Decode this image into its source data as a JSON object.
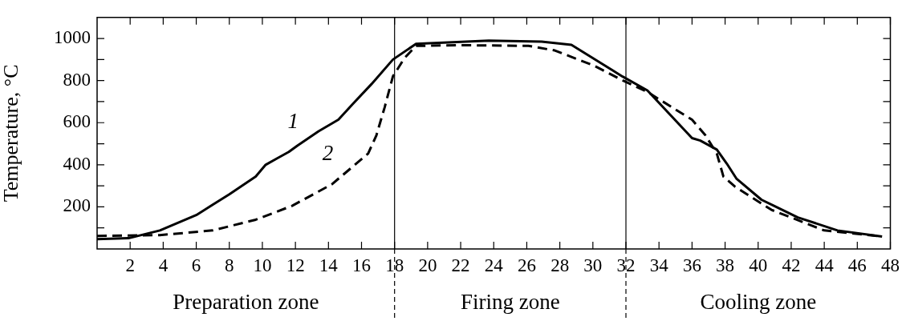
{
  "chart_data": {
    "type": "line",
    "ylabel": "Temperature, °C",
    "xlim": [
      0,
      48
    ],
    "xticks": [
      2,
      4,
      6,
      8,
      10,
      12,
      14,
      16,
      18,
      20,
      22,
      24,
      26,
      28,
      30,
      32,
      34,
      36,
      38,
      40,
      42,
      44,
      46,
      48
    ],
    "ylim": [
      0,
      1100
    ],
    "yticks": [
      {
        "value": 100,
        "label": null
      },
      200,
      {
        "value": 300,
        "label": null
      },
      400,
      {
        "value": 500,
        "label": null
      },
      600,
      {
        "value": 700,
        "label": null
      },
      800,
      {
        "value": 900,
        "label": null
      },
      1000
    ],
    "grid": false,
    "legend": false,
    "marker": "none",
    "series": [
      {
        "name": "1",
        "color": "#000000",
        "line_style": "solid",
        "x": [
          0,
          1.9,
          3.8,
          6,
          8,
          9.6,
          10.2,
          10.9,
          11.6,
          12.1,
          13.4,
          14.6,
          15.5,
          16.6,
          17.9,
          19.3,
          23.7,
          26.9,
          28.7,
          31.8,
          33.3,
          36,
          36.5,
          37.5,
          38.1,
          38.7,
          40.2,
          42.4,
          44.8,
          47.5
        ],
        "values": [
          47,
          51,
          88,
          161,
          260,
          344,
          400,
          431,
          461,
          490,
          559,
          614,
          691,
          783,
          900,
          975,
          990,
          985,
          970,
          819,
          753,
          527,
          515,
          472,
          406,
          333,
          234,
          150,
          88,
          59
        ]
      },
      {
        "name": "2",
        "color": "#000000",
        "line_style": "dashed",
        "x": [
          0,
          3.8,
          7,
          9.6,
          11.8,
          14.2,
          16.4,
          16.9,
          17.4,
          17.9,
          18.6,
          19.3,
          22.1,
          26.1,
          27.7,
          30.1,
          31.8,
          33.3,
          36,
          36.8,
          37.5,
          37.9,
          38.6,
          40.8,
          44,
          47.5
        ],
        "values": [
          62,
          66,
          88,
          139,
          205,
          307,
          453,
          540,
          673,
          820,
          907,
          965,
          968,
          965,
          943,
          870,
          801,
          746,
          614,
          541,
          453,
          344,
          296,
          186,
          88,
          59
        ]
      }
    ],
    "ref_lines": [
      {
        "axis": "x",
        "value": 18
      },
      {
        "axis": "x",
        "value": 32
      }
    ],
    "annotations": [
      "Preparation zone",
      "Firing zone",
      "Cooling zone"
    ]
  }
}
